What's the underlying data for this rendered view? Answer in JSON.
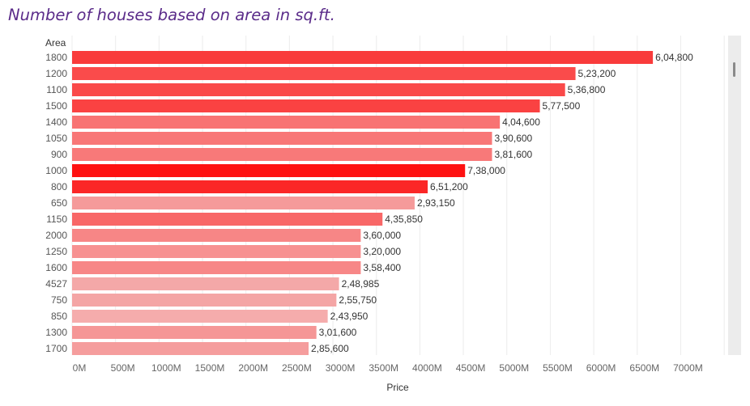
{
  "chart_data": {
    "type": "bar",
    "orientation": "horizontal",
    "title": "Number of houses based on area in sq.ft.",
    "ylabel": "Area",
    "xlabel": "Price",
    "categories": [
      "1800",
      "1200",
      "1100",
      "1500",
      "1400",
      "1050",
      "900",
      "1000",
      "800",
      "650",
      "1150",
      "2000",
      "1250",
      "1600",
      "4527",
      "750",
      "850",
      "1300",
      "1700"
    ],
    "values": [
      6680,
      5790,
      5670,
      5380,
      4920,
      4830,
      4830,
      4520,
      4090,
      3940,
      3570,
      3320,
      3320,
      3320,
      3070,
      3040,
      2940,
      2810,
      2720
    ],
    "labels": [
      "6,04,800",
      "5,23,200",
      "5,36,800",
      "5,77,500",
      "4,04,600",
      "3,90,600",
      "3,81,600",
      "7,38,000",
      "6,51,200",
      "2,93,150",
      "4,35,850",
      "3,60,000",
      "3,20,000",
      "3,58,400",
      "2,48,985",
      "2,55,750",
      "2,43,950",
      "3,01,600",
      "2,85,600"
    ],
    "colors": [
      "#f93b3b",
      "#fa4b4b",
      "#fa4949",
      "#fa4242",
      "#f87373",
      "#f87777",
      "#f87979",
      "#fe1111",
      "#fb2727",
      "#f59a9a",
      "#f86767",
      "#f78686",
      "#f79191",
      "#f78787",
      "#f4a8a8",
      "#f4a5a5",
      "#f5acac",
      "#f59696",
      "#f59d9d"
    ],
    "xticks": [
      "0M",
      "500M",
      "1000M",
      "1500M",
      "2000M",
      "2500M",
      "3000M",
      "3500M",
      "4000M",
      "4500M",
      "5000M",
      "5500M",
      "6000M",
      "6500M",
      "7000M"
    ],
    "xlim": [
      0,
      7500
    ],
    "grid": true
  }
}
